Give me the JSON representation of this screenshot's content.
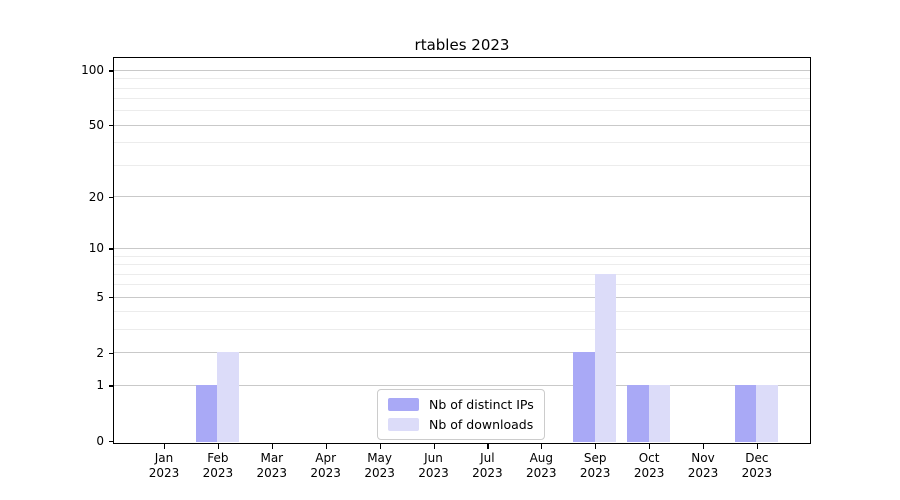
{
  "figure": {
    "title": "rtables 2023"
  },
  "chart_data": {
    "type": "bar",
    "title": "rtables 2023",
    "categories": [
      "Jan",
      "Feb",
      "Mar",
      "Apr",
      "May",
      "Jun",
      "Jul",
      "Aug",
      "Sep",
      "Oct",
      "Nov",
      "Dec"
    ],
    "category_year": "2023",
    "series": [
      {
        "name": "Nb of distinct IPs",
        "color": "#a9a9f6",
        "values": [
          0,
          1,
          0,
          0,
          0,
          0,
          0,
          0,
          2,
          1,
          0,
          1
        ]
      },
      {
        "name": "Nb of downloads",
        "color": "#dcdcf9",
        "values": [
          0,
          2,
          0,
          0,
          0,
          0,
          0,
          0,
          7,
          1,
          0,
          1
        ]
      }
    ],
    "yscale": "log1p",
    "ylim": [
      0,
      116
    ],
    "yticks_major": [
      0,
      1,
      2,
      5,
      10,
      20,
      50,
      100
    ],
    "yticks_minor": [
      3,
      4,
      6,
      7,
      8,
      9,
      30,
      40,
      60,
      70,
      80,
      90
    ],
    "grid": true,
    "legend_position": "lower center"
  },
  "colors": {
    "major_grid": "#c9c9c9",
    "minor_grid": "#ececec",
    "spine": "#000000",
    "text": "#000000",
    "legend_border": "#cccccc",
    "background": "#ffffff"
  }
}
